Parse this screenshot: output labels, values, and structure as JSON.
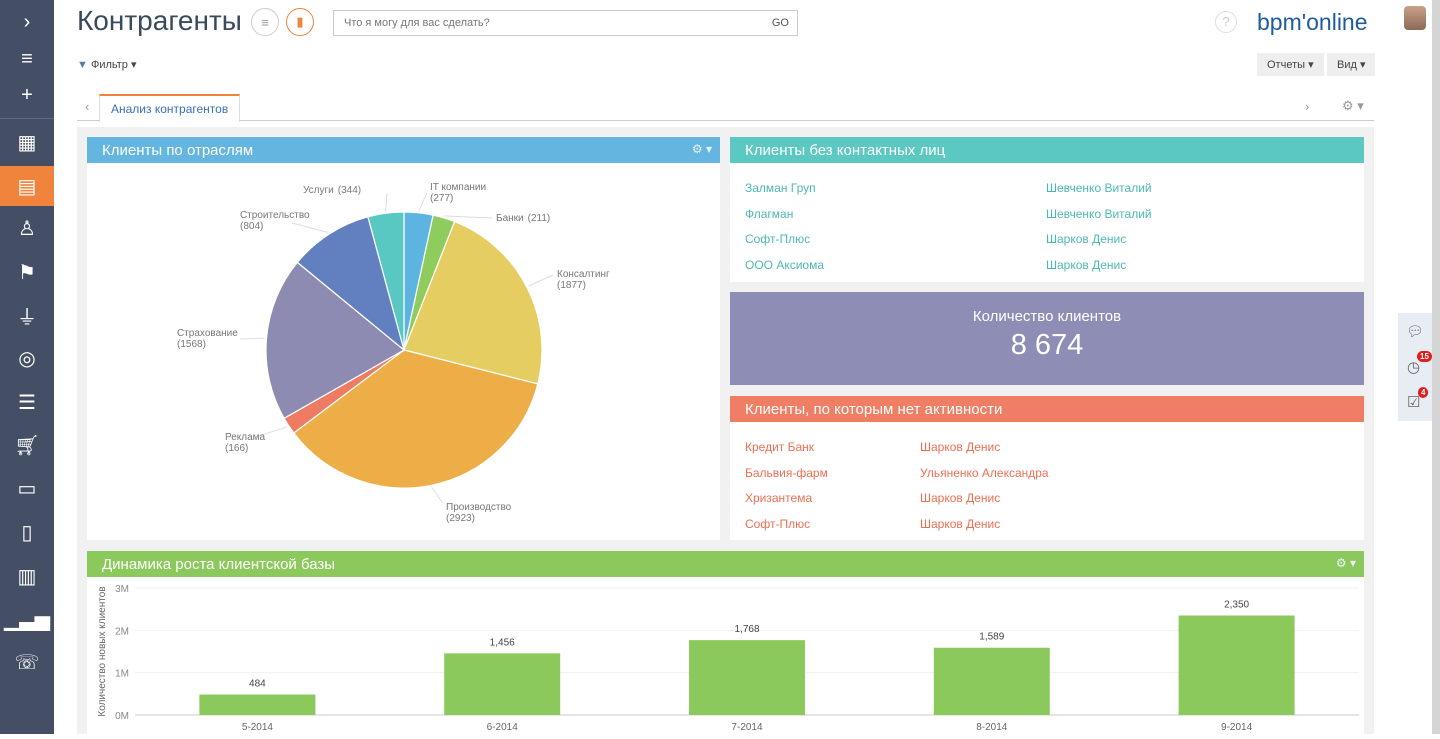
{
  "header": {
    "title": "Контрагенты",
    "search_placeholder": "Что я могу для вас сделать?",
    "go": "GO",
    "help": "?",
    "logo": "bpm'online",
    "filter": "Фильтр",
    "reports": "Отчеты",
    "view": "Вид"
  },
  "tabs": [
    {
      "label": "Анализ контрагентов",
      "active": true
    }
  ],
  "sidebar": {
    "items": [
      "expand",
      "menu",
      "add",
      "accounts-structure",
      "accounts",
      "contacts",
      "activities",
      "leads",
      "opportunities",
      "processes",
      "orders",
      "documents",
      "knowledge-base",
      "dashboards",
      "feed"
    ],
    "active": "accounts",
    "active_color": "#f0843c"
  },
  "right_tools": {
    "chat": "chat-icon",
    "reminders_count": "15",
    "tasks_count": "4"
  },
  "panels": {
    "industries": {
      "title": "Клиенты по отраслям",
      "color": "#64b5e0"
    },
    "no_contacts": {
      "title": "Клиенты без контактных лиц",
      "color": "#5bc8c2",
      "rows": [
        [
          "Залман Груп",
          "Шевченко Виталий"
        ],
        [
          "Флагман",
          "Шевченко Виталий"
        ],
        [
          "Софт-Плюс",
          "Шарков Денис"
        ],
        [
          "ООО Аксиома",
          "Шарков Денис"
        ]
      ]
    },
    "count": {
      "title": "Количество клиентов",
      "value": "8 674",
      "color": "#8e8db5"
    },
    "no_activity": {
      "title": "Клиенты, по которым нет активности",
      "color": "#ef7e64",
      "rows": [
        [
          "Кредит Банк",
          "Шарков Денис"
        ],
        [
          "Бальвия-фарм",
          "Ульяненко Александра"
        ],
        [
          "Хризантема",
          "Шарков Денис"
        ],
        [
          "Софт-Плюс",
          "Шарков Денис"
        ]
      ]
    },
    "growth": {
      "title": "Динамика роста клиентской базы",
      "color": "#8cc95c"
    }
  },
  "chart_data": [
    {
      "type": "pie",
      "title": "Клиенты по отраслям",
      "categories": [
        "IT компании",
        "Банки",
        "Консалтинг",
        "Производство",
        "Реклама",
        "Страхование",
        "Строительство",
        "Услуги"
      ],
      "values": [
        277,
        211,
        1877,
        2923,
        166,
        1568,
        804,
        344
      ],
      "colors": [
        "#5db4e0",
        "#8fcc5e",
        "#e5cd62",
        "#eeae47",
        "#ef7b62",
        "#8e8bb3",
        "#627fc0",
        "#5ac8c2"
      ]
    },
    {
      "type": "bar",
      "title": "Динамика роста клиентской базы",
      "categories": [
        "5-2014",
        "6-2014",
        "7-2014",
        "8-2014",
        "9-2014"
      ],
      "values": [
        484,
        1456,
        1768,
        1589,
        2350
      ],
      "data_labels": [
        "484",
        "1,456",
        "1,768",
        "1,589",
        "2,350"
      ],
      "ylabel": "Количество новых клиентов",
      "yticks": [
        "0M",
        "1M",
        "2M",
        "3M"
      ],
      "ylim": [
        0,
        3000
      ],
      "color": "#8cc95c",
      "grid": true
    }
  ]
}
